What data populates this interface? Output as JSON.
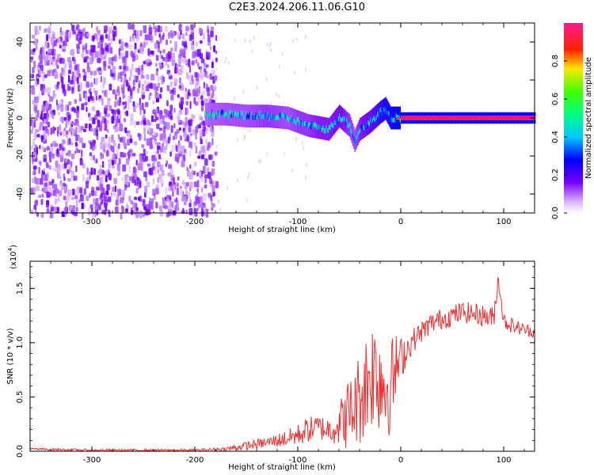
{
  "title": "C2E3.2024.206.11.06.G10",
  "colors": {
    "series": "#f03030",
    "axis": "#000000",
    "background": "#ffffff"
  },
  "chart_data": [
    {
      "type": "heatmap",
      "xlabel": "Height of straight line (km)",
      "ylabel": "Frequency (Hz)",
      "xlim": [
        -360,
        130
      ],
      "ylim": [
        -50,
        50
      ],
      "xticks": [
        -300,
        -200,
        -100,
        0,
        100
      ],
      "yticks": [
        -40,
        -20,
        0,
        20,
        40
      ],
      "colorbar": {
        "label": "Normalized spectral amplitude",
        "ticks": [
          0.0,
          0.2,
          0.4,
          0.6,
          0.8
        ],
        "tick_labels": [
          "0.0",
          "0.2",
          "0.4",
          "0.6",
          "0.8"
        ],
        "range": [
          0,
          1
        ]
      },
      "noise_region_x": [
        -360,
        -180
      ],
      "ridge": {
        "x": [
          -190,
          -170,
          -150,
          -130,
          -110,
          -100,
          -90,
          -80,
          -70,
          -60,
          -50,
          -45,
          -40,
          -30,
          -20,
          -15,
          -10,
          -5,
          0,
          20,
          60,
          100,
          130
        ],
        "frequency": [
          2,
          2,
          1,
          1,
          0,
          -2,
          -4,
          -5,
          -6,
          1,
          -4,
          -12,
          -6,
          -2,
          3,
          5,
          0,
          0,
          0,
          0,
          0,
          0,
          0
        ],
        "amplitude": [
          0.35,
          0.4,
          0.4,
          0.45,
          0.4,
          0.45,
          0.45,
          0.5,
          0.5,
          0.55,
          0.45,
          0.4,
          0.5,
          0.6,
          0.8,
          0.85,
          0.9,
          0.95,
          1.0,
          1.0,
          1.0,
          1.0,
          1.0
        ]
      }
    },
    {
      "type": "line",
      "xlabel": "Height of straight line (km)",
      "ylabel": "SNR (10 * v/v)",
      "multiplier_label": "(x10",
      "multiplier_exp": "4",
      "xlim": [
        -360,
        130
      ],
      "ylim": [
        0,
        1.75
      ],
      "xticks": [
        -300,
        -200,
        -100,
        0,
        100
      ],
      "yticks": [
        0.0,
        0.5,
        1.0,
        1.5
      ],
      "ytick_labels": [
        "0.0",
        "0.5",
        "1.0",
        "1.5"
      ],
      "series": [
        {
          "x": [
            -360,
            -300,
            -250,
            -200,
            -170,
            -150,
            -130,
            -110,
            -100,
            -90,
            -80,
            -70,
            -60,
            -50,
            -45,
            -40,
            -35,
            -30,
            -25,
            -20,
            -15,
            -10,
            -5,
            0,
            10,
            20,
            30,
            40,
            50,
            60,
            70,
            80,
            90,
            95,
            100,
            110,
            120,
            130
          ],
          "values": [
            0.02,
            0.01,
            0.01,
            0.01,
            0.02,
            0.05,
            0.08,
            0.12,
            0.15,
            0.2,
            0.22,
            0.2,
            0.25,
            0.35,
            0.4,
            0.5,
            0.6,
            0.7,
            0.75,
            0.7,
            0.6,
            0.6,
            0.75,
            0.85,
            1.0,
            1.1,
            1.18,
            1.22,
            1.25,
            1.28,
            1.27,
            1.25,
            1.22,
            1.6,
            1.2,
            1.15,
            1.12,
            1.1
          ],
          "spread": [
            0.01,
            0.01,
            0.01,
            0.01,
            0.02,
            0.04,
            0.05,
            0.08,
            0.1,
            0.12,
            0.12,
            0.12,
            0.2,
            0.35,
            0.35,
            0.45,
            0.5,
            0.5,
            0.55,
            0.55,
            0.5,
            0.45,
            0.35,
            0.2,
            0.12,
            0.1,
            0.1,
            0.1,
            0.1,
            0.1,
            0.1,
            0.1,
            0.12,
            0.1,
            0.08,
            0.07,
            0.06,
            0.06
          ]
        }
      ]
    }
  ]
}
